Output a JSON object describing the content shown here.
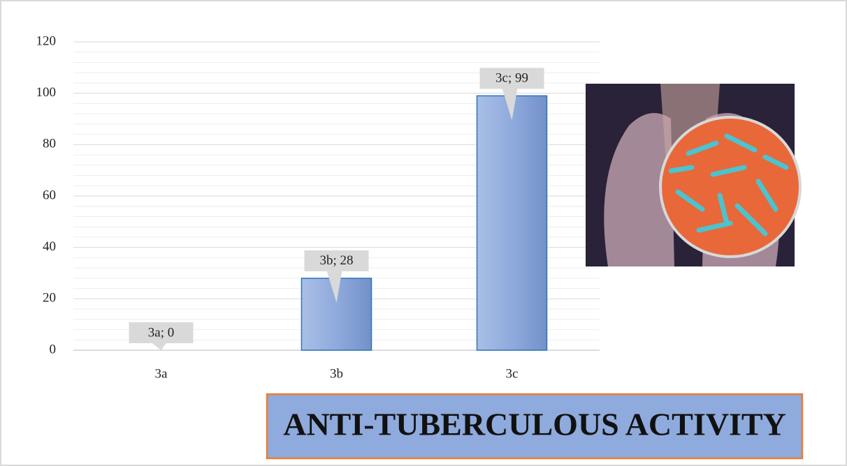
{
  "chart_data": {
    "type": "bar",
    "title": "ANTI-TUBERCULOUS ACTIVITY",
    "categories": [
      "3a",
      "3b",
      "3c"
    ],
    "values": [
      0,
      28,
      99
    ],
    "value_labels": [
      "3a; 0",
      "3b; 28",
      "3c; 99"
    ],
    "color": "#8faadc",
    "ylim": [
      0,
      120
    ],
    "yticks": [
      0,
      20,
      40,
      60,
      80,
      100,
      120
    ],
    "grid": true
  }
}
